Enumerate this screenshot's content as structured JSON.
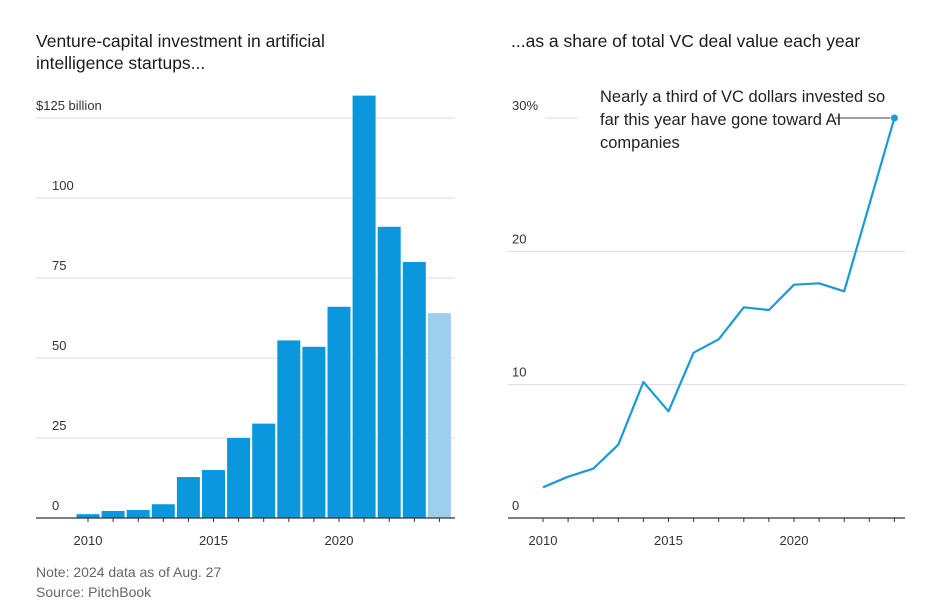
{
  "titles": {
    "left": "Venture-capital investment in artificial intelligence startups...",
    "right": "...as a share of total VC deal value each year"
  },
  "annotation": "Nearly a third of VC dollars invested so far this year have gone toward AI companies",
  "footer": {
    "note": "Note: 2024 data as of Aug. 27",
    "source": "Source: PitchBook"
  },
  "colors": {
    "bar": "#0b97dc",
    "bar_partial": "#9ccfee",
    "line": "#1a9ad6",
    "grid": "#dddddd",
    "axis": "#333333"
  },
  "chart_data": [
    {
      "type": "bar",
      "title": "Venture-capital investment in artificial intelligence startups...",
      "ylabel": "$125 billion",
      "x": [
        2010,
        2011,
        2012,
        2013,
        2014,
        2015,
        2016,
        2017,
        2018,
        2019,
        2020,
        2021,
        2022,
        2023,
        2024
      ],
      "values": [
        1.2,
        2.2,
        2.5,
        4.3,
        12.8,
        15,
        25,
        29.5,
        55.5,
        53.5,
        66,
        132,
        91,
        80,
        64
      ],
      "partial_year": 2024,
      "ylim": [
        0,
        130
      ],
      "yticks": [
        0,
        25,
        50,
        75,
        100,
        125
      ],
      "ytick_labels": [
        "0",
        "25",
        "50",
        "75",
        "100",
        "$125 billion"
      ],
      "xticks": [
        2010,
        2015,
        2020
      ],
      "grid": true
    },
    {
      "type": "line",
      "title": "...as a share of total VC deal value each year",
      "x": [
        2010,
        2011,
        2012,
        2013,
        2014,
        2015,
        2016,
        2017,
        2018,
        2019,
        2020,
        2021,
        2022,
        2023,
        2024
      ],
      "values": [
        2.3,
        3.1,
        3.7,
        5.5,
        10.2,
        8,
        12.4,
        13.4,
        15.8,
        15.6,
        17.5,
        17.6,
        17,
        23.5,
        30
      ],
      "ylim": [
        0,
        30
      ],
      "yticks": [
        0,
        10,
        20,
        30
      ],
      "ytick_labels": [
        "0",
        "10",
        "20",
        "30%"
      ],
      "xticks": [
        2010,
        2015,
        2020
      ],
      "grid": true
    }
  ]
}
